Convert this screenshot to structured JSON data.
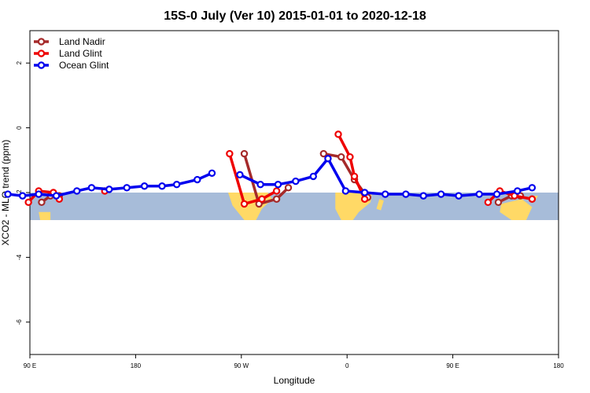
{
  "chart_data": {
    "type": "line",
    "title": "15S-0 July (Ver 10)   2015-01-01 to 2020-12-18",
    "xlabel": "Longitude",
    "ylabel": "XCO2 - MLO trend (ppm)",
    "xlim": [
      90,
      450
    ],
    "ylim": [
      -7,
      3
    ],
    "x_ticks": [
      {
        "value": 90,
        "label": "90 E"
      },
      {
        "value": 162,
        "label": "180"
      },
      {
        "value": 234,
        "label": "90 W"
      },
      {
        "value": 306,
        "label": "0"
      },
      {
        "value": 378,
        "label": "90 E"
      },
      {
        "value": 450,
        "label": "180"
      }
    ],
    "y_ticks": [
      {
        "value": 2,
        "label": "2"
      },
      {
        "value": 0,
        "label": "0"
      },
      {
        "value": -2,
        "label": "-2"
      },
      {
        "value": -4,
        "label": "-4"
      },
      {
        "value": -6,
        "label": "-6"
      }
    ],
    "legend_position": "top-left",
    "background_map": {
      "ocean_color": "#a7bcd9",
      "land_color": "#ffd966",
      "y_range": [
        -2.85,
        -2.0
      ]
    },
    "series": [
      {
        "name": "Land Nadir",
        "color": "#a52a2a",
        "segments": [
          [
            [
              98,
              -2.3
            ],
            [
              104,
              -2.1
            ],
            [
              110,
              -2.1
            ]
          ],
          [
            [
              236,
              -0.8
            ],
            [
              246,
              -2.35
            ],
            [
              258,
              -2.2
            ],
            [
              266,
              -1.85
            ]
          ],
          [
            [
              290,
              -0.8
            ],
            [
              302,
              -0.9
            ],
            [
              311,
              -1.6
            ],
            [
              320,
              -2.15
            ]
          ],
          [
            [
              409,
              -2.3
            ],
            [
              418,
              -2.1
            ],
            [
              424,
              -2.1
            ]
          ]
        ]
      },
      {
        "name": "Land Glint",
        "color": "#ee0000",
        "segments": [
          [
            [
              89,
              -2.3
            ],
            [
              96,
              -1.95
            ],
            [
              106,
              -2.0
            ],
            [
              110,
              -2.2
            ]
          ],
          [
            [
              141,
              -1.95
            ]
          ],
          [
            [
              226,
              -0.8
            ],
            [
              236,
              -2.35
            ],
            [
              248,
              -2.2
            ],
            [
              258,
              -1.95
            ]
          ],
          [
            [
              300,
              -0.2
            ],
            [
              308,
              -0.9
            ],
            [
              311,
              -1.5
            ],
            [
              318,
              -2.2
            ]
          ],
          [
            [
              402,
              -2.3
            ],
            [
              410,
              -1.95
            ],
            [
              420,
              -2.1
            ],
            [
              432,
              -2.2
            ]
          ]
        ]
      },
      {
        "name": "Ocean Glint",
        "color": "#0000ee",
        "segments": [
          [
            [
              75,
              -2.05
            ],
            [
              85,
              -2.1
            ],
            [
              96,
              -2.05
            ],
            [
              108,
              -2.1
            ],
            [
              122,
              -1.95
            ],
            [
              132,
              -1.85
            ],
            [
              144,
              -1.9
            ],
            [
              156,
              -1.85
            ],
            [
              168,
              -1.8
            ],
            [
              180,
              -1.8
            ],
            [
              190,
              -1.75
            ],
            [
              204,
              -1.6
            ],
            [
              214,
              -1.4
            ]
          ],
          [
            [
              233,
              -1.45
            ],
            [
              247,
              -1.75
            ],
            [
              259,
              -1.75
            ],
            [
              271,
              -1.65
            ],
            [
              283,
              -1.5
            ],
            [
              293,
              -0.95
            ],
            [
              305,
              -1.95
            ],
            [
              318,
              -2.0
            ],
            [
              332,
              -2.05
            ],
            [
              346,
              -2.05
            ],
            [
              358,
              -2.1
            ],
            [
              370,
              -2.05
            ],
            [
              382,
              -2.1
            ],
            [
              396,
              -2.05
            ],
            [
              408,
              -2.05
            ],
            [
              422,
              -1.95
            ],
            [
              432,
              -1.85
            ]
          ]
        ]
      }
    ]
  }
}
